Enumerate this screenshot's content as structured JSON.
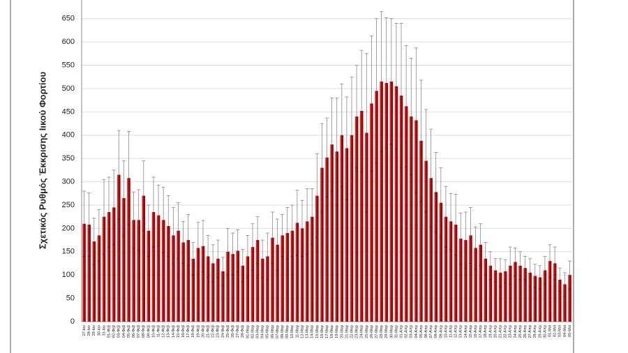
{
  "chart_data": {
    "type": "bar",
    "y_label": "Σχετικός Ρυθμός Έκκρισης Ιικού Φορτίου",
    "categories": [
      "27-Ιαν",
      "28-Ιαν",
      "29-Ιαν",
      "30-Ιαν",
      "31-Ιαν",
      "01-Φεβ",
      "02-Φεβ",
      "03-Φεβ",
      "04-Φεβ",
      "05-Φεβ",
      "06-Φεβ",
      "07-Φεβ",
      "08-Φεβ",
      "09-Φεβ",
      "10-Φεβ",
      "11-Φεβ",
      "12-Φεβ",
      "13-Φεβ",
      "14-Φεβ",
      "15-Φεβ",
      "16-Φεβ",
      "17-Φεβ",
      "18-Φεβ",
      "19-Φεβ",
      "20-Φεβ",
      "21-Φεβ",
      "22-Φεβ",
      "23-Φεβ",
      "24-Φεβ",
      "25-Φεβ",
      "26-Φεβ",
      "27-Φεβ",
      "28-Φεβ",
      "01-Μαρ",
      "02-Μαρ",
      "03-Μαρ",
      "04-Μαρ",
      "05-Μαρ",
      "06-Μαρ",
      "07-Μαρ",
      "08-Μαρ",
      "09-Μαρ",
      "10-Μαρ",
      "11-Μαρ",
      "12-Μαρ",
      "13-Μαρ",
      "14-Μαρ",
      "15-Μαρ",
      "16-Μαρ",
      "17-Μαρ",
      "18-Μαρ",
      "19-Μαρ",
      "20-Μαρ",
      "21-Μαρ",
      "22-Μαρ",
      "23-Μαρ",
      "24-Μαρ",
      "25-Μαρ",
      "26-Μαρ",
      "27-Μαρ",
      "28-Μαρ",
      "29-Μαρ",
      "30-Μαρ",
      "31-Μαρ",
      "01-Απρ",
      "02-Απρ",
      "03-Απρ",
      "04-Απρ",
      "05-Απρ",
      "06-Απρ",
      "07-Απρ",
      "08-Απρ",
      "09-Απρ",
      "10-Απρ",
      "11-Απρ",
      "12-Απρ",
      "13-Απρ",
      "14-Απρ",
      "15-Απρ",
      "16-Απρ",
      "17-Απρ",
      "18-Απρ",
      "19-Απρ",
      "20-Απρ",
      "21-Απρ",
      "22-Απρ",
      "23-Απρ",
      "24-Απρ",
      "25-Απρ",
      "26-Απρ",
      "27-Απρ",
      "28-Απρ",
      "29-Απρ",
      "30-Απρ",
      "01-Μαϊ",
      "02-Μαϊ",
      "03-Μαϊ",
      "04-Μαϊ",
      "05-Μαϊ"
    ],
    "values": [
      210,
      208,
      172,
      185,
      225,
      235,
      245,
      315,
      265,
      308,
      218,
      218,
      270,
      195,
      235,
      228,
      218,
      205,
      185,
      195,
      170,
      175,
      135,
      158,
      162,
      140,
      125,
      135,
      108,
      150,
      145,
      152,
      120,
      140,
      160,
      175,
      135,
      140,
      180,
      165,
      185,
      190,
      195,
      212,
      200,
      215,
      225,
      270,
      330,
      352,
      380,
      365,
      400,
      372,
      400,
      440,
      452,
      405,
      468,
      495,
      515,
      512,
      515,
      505,
      485,
      462,
      440,
      432,
      388,
      345,
      308,
      278,
      255,
      225,
      215,
      208,
      178,
      175,
      185,
      158,
      165,
      135,
      120,
      110,
      105,
      108,
      120,
      128,
      120,
      115,
      105,
      98,
      95,
      110,
      130,
      125,
      90,
      80,
      100
    ],
    "errors": [
      70,
      68,
      50,
      55,
      80,
      75,
      80,
      95,
      80,
      100,
      60,
      65,
      75,
      55,
      75,
      65,
      70,
      65,
      60,
      60,
      45,
      55,
      35,
      55,
      55,
      45,
      40,
      40,
      30,
      50,
      45,
      45,
      35,
      45,
      50,
      50,
      40,
      50,
      55,
      55,
      45,
      55,
      55,
      70,
      60,
      70,
      60,
      90,
      95,
      85,
      100,
      115,
      110,
      110,
      125,
      110,
      130,
      170,
      145,
      155,
      150,
      140,
      135,
      135,
      155,
      130,
      125,
      155,
      130,
      110,
      105,
      85,
      75,
      65,
      60,
      65,
      55,
      60,
      60,
      45,
      45,
      35,
      30,
      25,
      30,
      25,
      40,
      30,
      30,
      25,
      30,
      25,
      25,
      30,
      35,
      35,
      25,
      25,
      30
    ],
    "color": "#c00000",
    "error_color": "#888888",
    "ylim": [
      0,
      690
    ],
    "yticks": [
      0,
      50,
      100,
      150,
      200,
      250,
      300,
      350,
      400,
      450,
      500,
      550,
      600,
      650
    ],
    "grid": true
  }
}
